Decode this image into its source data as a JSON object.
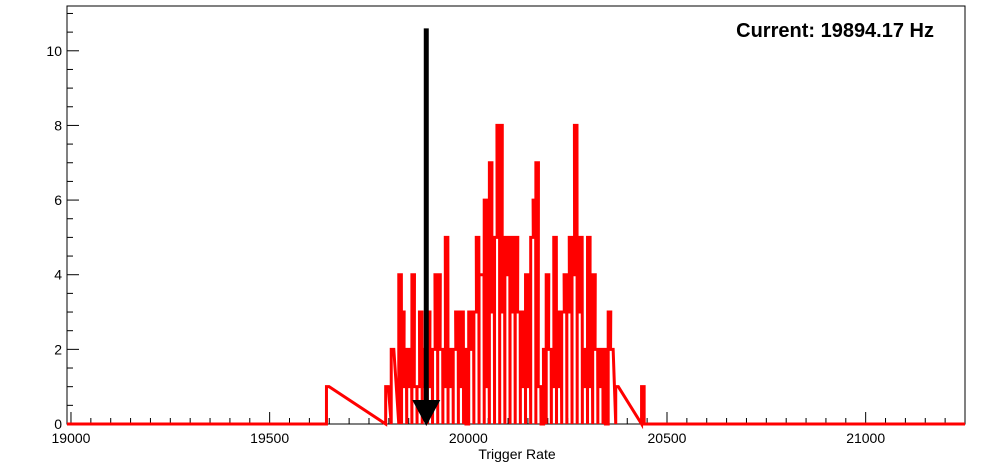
{
  "chart_data": {
    "type": "histogram",
    "title": "",
    "xlabel": "Trigger Rate",
    "ylabel": "",
    "xlim": [
      18990,
      21250
    ],
    "ylim": [
      0,
      11.2
    ],
    "bin_width": 6.5,
    "x_ticks": [
      19000,
      19500,
      20000,
      20500,
      21000
    ],
    "x_tick_labels": [
      "19000",
      "19500",
      "20000",
      "20500",
      "21000"
    ],
    "y_ticks": [
      0,
      2,
      4,
      6,
      8,
      10
    ],
    "y_tick_labels": [
      "0",
      "2",
      "4",
      "6",
      "8",
      "10"
    ],
    "grid": false,
    "legend": "none",
    "series": [
      {
        "color": "#ff0000",
        "bins": [
          [
            19643,
            1
          ],
          [
            19792,
            1
          ],
          [
            19806,
            2
          ],
          [
            19825,
            4
          ],
          [
            19832,
            3
          ],
          [
            19838,
            1
          ],
          [
            19845,
            2
          ],
          [
            19851,
            1
          ],
          [
            19858,
            4
          ],
          [
            19864,
            1
          ],
          [
            19871,
            1
          ],
          [
            19877,
            3
          ],
          [
            19884,
            2
          ],
          [
            19890,
            1
          ],
          [
            19897,
            3
          ],
          [
            19903,
            1
          ],
          [
            19910,
            2
          ],
          [
            19916,
            4
          ],
          [
            19923,
            4
          ],
          [
            19929,
            2
          ],
          [
            19936,
            1
          ],
          [
            19942,
            5
          ],
          [
            19949,
            1
          ],
          [
            19955,
            2
          ],
          [
            19962,
            2
          ],
          [
            19968,
            3
          ],
          [
            19975,
            1
          ],
          [
            19981,
            3
          ],
          [
            19988,
            2
          ],
          [
            19994,
            0
          ],
          [
            20001,
            3
          ],
          [
            20007,
            2
          ],
          [
            20014,
            3
          ],
          [
            20020,
            5
          ],
          [
            20027,
            4
          ],
          [
            20033,
            4
          ],
          [
            20040,
            6
          ],
          [
            20046,
            1
          ],
          [
            20053,
            7
          ],
          [
            20059,
            3
          ],
          [
            20066,
            5
          ],
          [
            20072,
            8
          ],
          [
            20079,
            8
          ],
          [
            20085,
            3
          ],
          [
            20092,
            5
          ],
          [
            20098,
            4
          ],
          [
            20105,
            5
          ],
          [
            20111,
            3
          ],
          [
            20118,
            5
          ],
          [
            20124,
            3
          ],
          [
            20131,
            1
          ],
          [
            20137,
            3
          ],
          [
            20144,
            4
          ],
          [
            20150,
            1
          ],
          [
            20157,
            5
          ],
          [
            20163,
            6
          ],
          [
            20170,
            7
          ],
          [
            20176,
            1
          ],
          [
            20183,
            0
          ],
          [
            20189,
            2
          ],
          [
            20196,
            4
          ],
          [
            20202,
            2
          ],
          [
            20209,
            1
          ],
          [
            20215,
            5
          ],
          [
            20222,
            3
          ],
          [
            20228,
            1
          ],
          [
            20235,
            3
          ],
          [
            20241,
            4
          ],
          [
            20248,
            3
          ],
          [
            20254,
            5
          ],
          [
            20261,
            4
          ],
          [
            20267,
            8
          ],
          [
            20274,
            3
          ],
          [
            20280,
            5
          ],
          [
            20287,
            1
          ],
          [
            20293,
            2
          ],
          [
            20300,
            5
          ],
          [
            20306,
            1
          ],
          [
            20313,
            4
          ],
          [
            20319,
            2
          ],
          [
            20326,
            1
          ],
          [
            20332,
            2
          ],
          [
            20339,
            2
          ],
          [
            20345,
            0
          ],
          [
            20352,
            3
          ],
          [
            20358,
            2
          ],
          [
            20371,
            1
          ],
          [
            20436,
            1
          ]
        ]
      }
    ],
    "annotations": {
      "current_label": "Current: 19894.17 Hz",
      "arrow_x": 19894.17,
      "arrow_y_top": 10.6,
      "arrow_y_bottom": 0
    }
  }
}
